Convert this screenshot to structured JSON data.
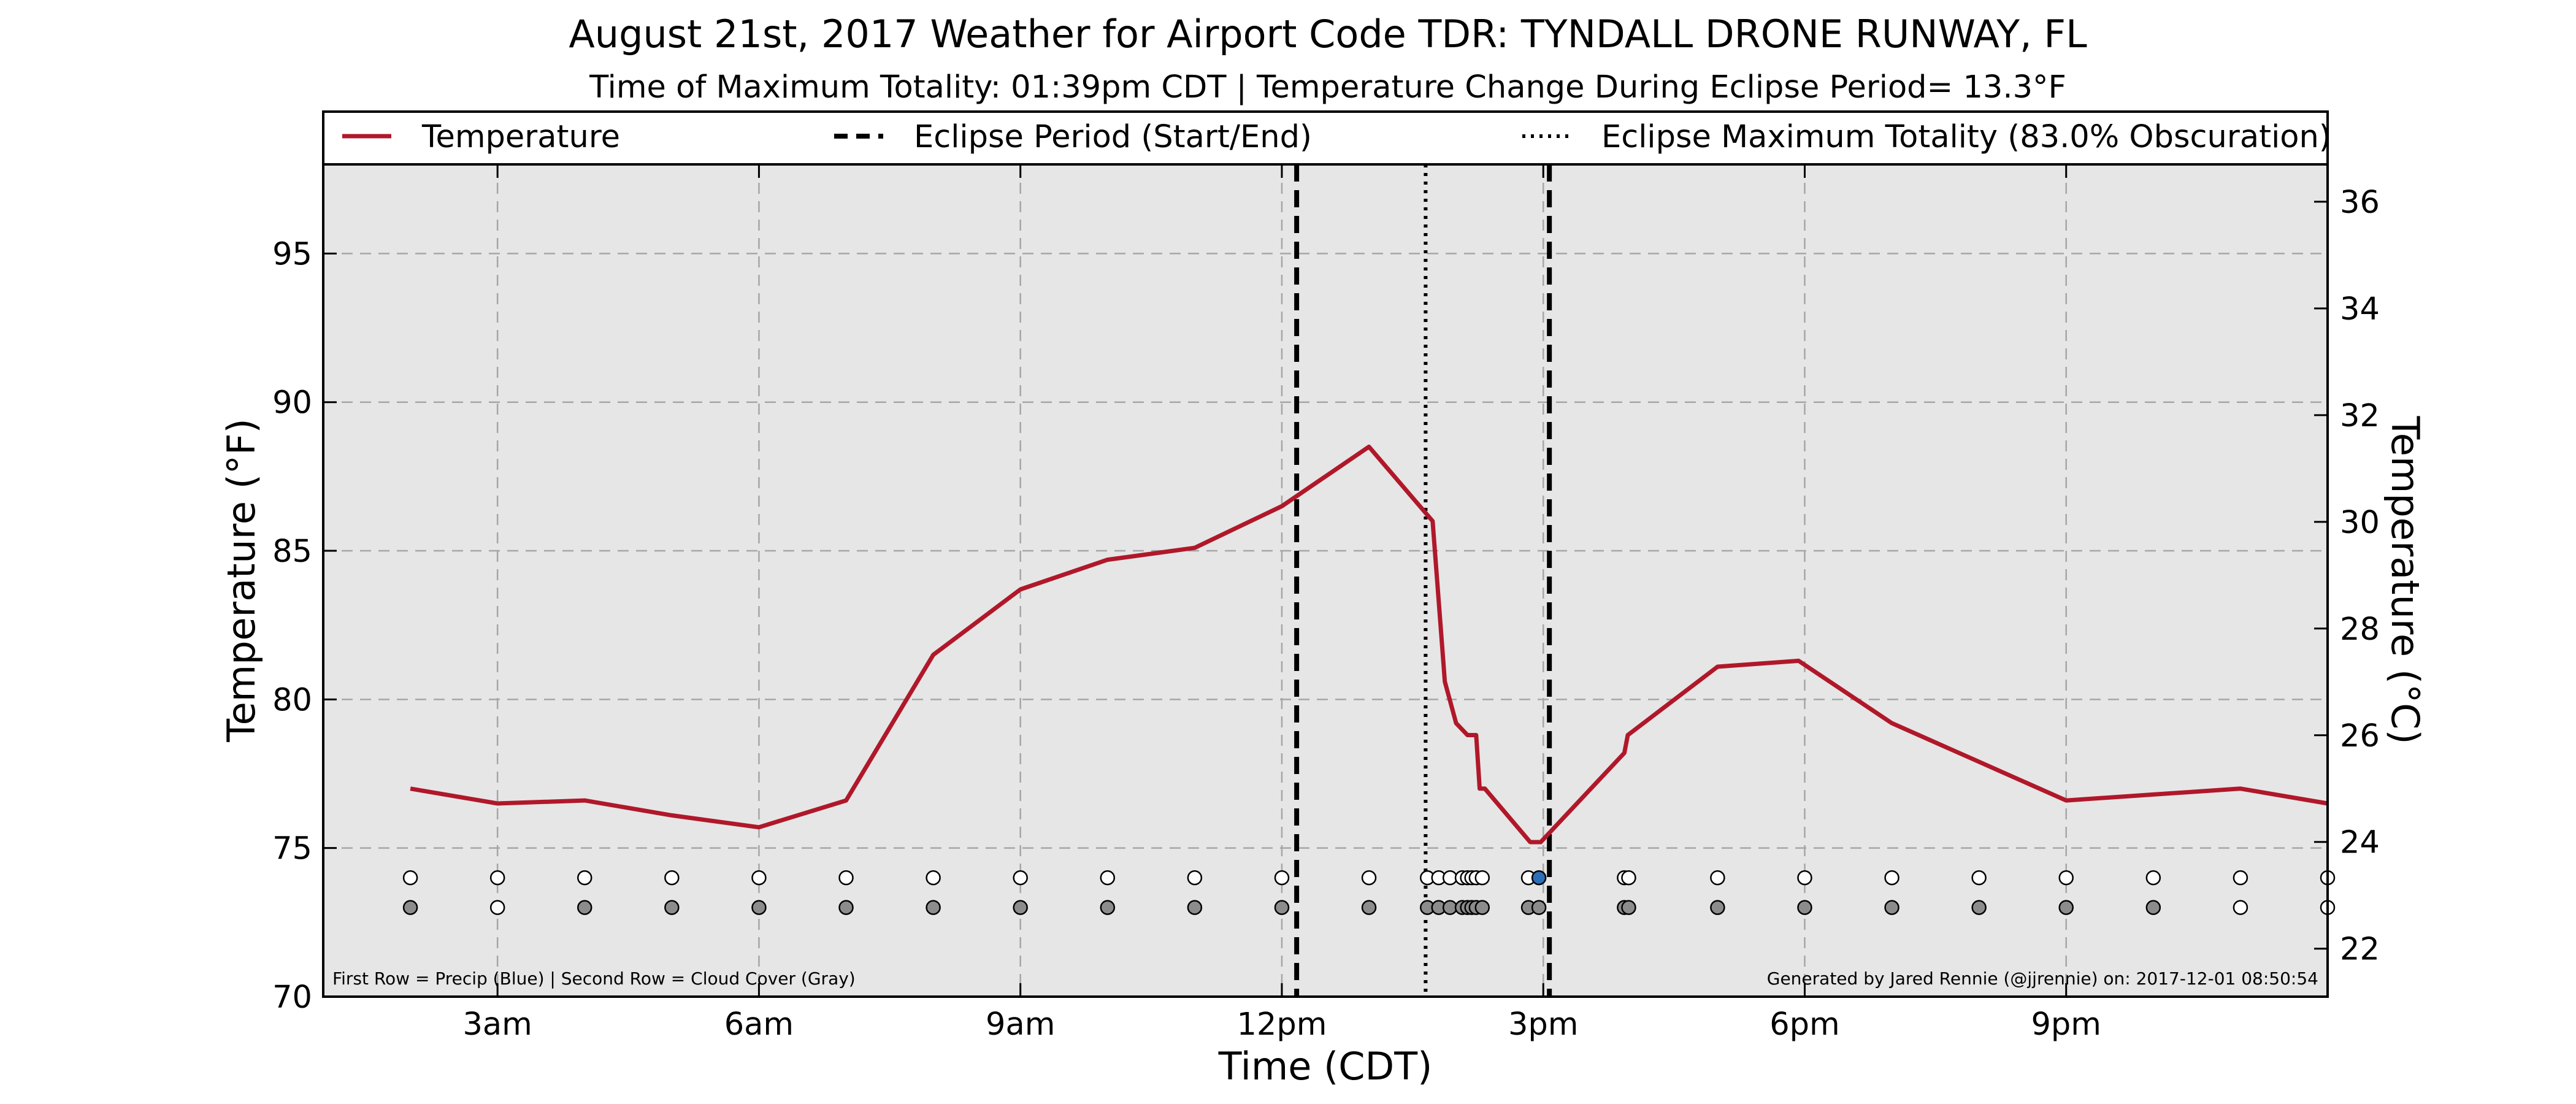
{
  "chart_data": {
    "type": "line",
    "title": "August 21st, 2017 Weather for Airport Code TDR: TYNDALL DRONE RUNWAY, FL",
    "subtitle": "Time of Maximum Totality: 01:39pm CDT | Temperature Change During Eclipse Period= 13.3°F",
    "xlabel": "Time (CDT)",
    "ylabel": "Temperature (°F)",
    "ylabel_right": "Temperature (°C)",
    "x_unit": "hours since midnight CDT",
    "xlim": [
      1.0,
      24.0
    ],
    "ylim": [
      70,
      98
    ],
    "ylim_right_c": [
      21.1,
      36.7
    ],
    "xticks": [
      {
        "x": 3,
        "label": "3am"
      },
      {
        "x": 6,
        "label": "6am"
      },
      {
        "x": 9,
        "label": "9am"
      },
      {
        "x": 12,
        "label": "12pm"
      },
      {
        "x": 15,
        "label": "3pm"
      },
      {
        "x": 18,
        "label": "6pm"
      },
      {
        "x": 21,
        "label": "9pm"
      }
    ],
    "yticks_left": [
      70,
      75,
      80,
      85,
      90,
      95
    ],
    "yticks_right": [
      22,
      24,
      26,
      28,
      30,
      32,
      34,
      36
    ],
    "grid": true,
    "legend_position": "top",
    "legend": {
      "temperature": "Temperature",
      "eclipse_period": "Eclipse Period (Start/End)",
      "eclipse_max": "Eclipse Maximum Totality (83.0% Obscuration)"
    },
    "series": [
      {
        "name": "Temperature",
        "color": "#b0182a",
        "x": [
          2.0,
          3.0,
          4.0,
          5.0,
          6.0,
          7.0,
          8.0,
          9.0,
          10.0,
          11.0,
          12.0,
          13.0,
          13.73,
          13.87,
          14.0,
          14.13,
          14.23,
          14.27,
          14.33,
          14.85,
          14.97,
          15.93,
          15.97,
          17.0,
          17.93,
          19.0,
          20.0,
          21.0,
          22.0,
          23.0,
          24.0
        ],
        "y": [
          77.0,
          76.5,
          76.6,
          76.1,
          75.7,
          76.6,
          81.5,
          83.7,
          84.7,
          85.1,
          86.5,
          88.5,
          86.0,
          80.6,
          79.2,
          78.8,
          78.8,
          77.0,
          77.0,
          75.2,
          75.2,
          78.2,
          78.8,
          81.1,
          81.3,
          79.2,
          77.9,
          76.6,
          76.8,
          77.0,
          76.5
        ]
      }
    ],
    "eclipse_start_x": 12.17,
    "eclipse_end_x": 15.07,
    "eclipse_max_x": 13.65,
    "eclipse_start_color": "#000000",
    "eclipse_max_color": "#000000",
    "marker_rows": {
      "precip_y": 74,
      "cloud_y": 73,
      "precip_color_yes": "#2b6fb6",
      "precip_color_no": "#ffffff",
      "cloud_color_yes": "#8c8c8c",
      "cloud_color_no": "#ffffff",
      "x": [
        2.0,
        3.0,
        4.0,
        5.0,
        6.0,
        7.0,
        8.0,
        9.0,
        10.0,
        11.0,
        12.0,
        13.0,
        13.67,
        13.8,
        13.93,
        14.07,
        14.13,
        14.18,
        14.23,
        14.3,
        14.83,
        14.95,
        15.93,
        15.98,
        17.0,
        18.0,
        19.0,
        20.0,
        21.0,
        22.0,
        23.0,
        24.0
      ],
      "precip": [
        0,
        0,
        0,
        0,
        0,
        0,
        0,
        0,
        0,
        0,
        0,
        0,
        0,
        0,
        0,
        0,
        0,
        0,
        0,
        0,
        0,
        1,
        0,
        0,
        0,
        0,
        0,
        0,
        0,
        0,
        0,
        0
      ],
      "cloud": [
        1,
        0,
        1,
        1,
        1,
        1,
        1,
        1,
        1,
        1,
        1,
        1,
        1,
        1,
        1,
        1,
        1,
        1,
        1,
        1,
        1,
        1,
        1,
        1,
        1,
        1,
        1,
        1,
        1,
        1,
        0,
        0
      ]
    },
    "footnote_left": "First Row = Precip (Blue) | Second Row = Cloud Cover (Gray)",
    "footnote_right": "Generated by Jared Rennie (@jjrennie) on: 2017-12-01 08:50:54"
  }
}
